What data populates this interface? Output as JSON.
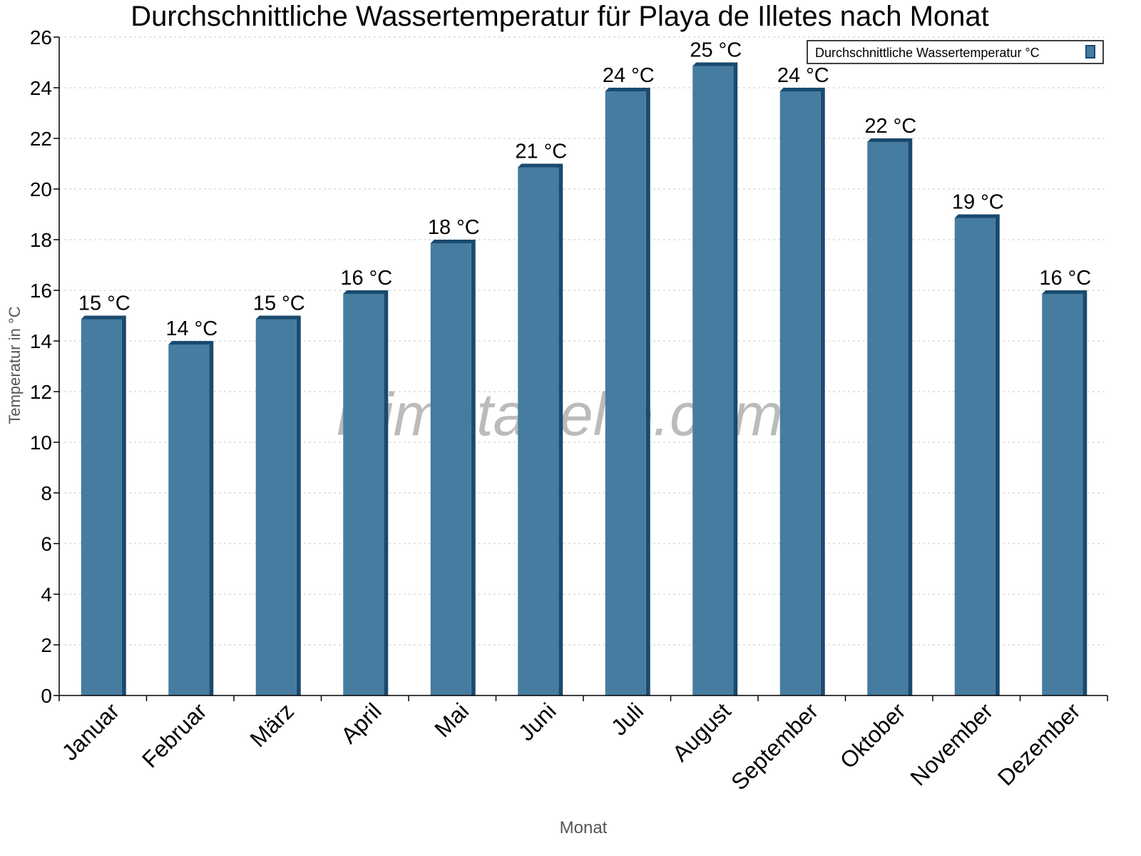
{
  "chart_data": {
    "type": "bar",
    "title": "Durchschnittliche Wassertemperatur für Playa de Illetes nach Monat",
    "xlabel": "Monat",
    "ylabel": "Temperatur in °C",
    "categories": [
      "Januar",
      "Februar",
      "März",
      "April",
      "Mai",
      "Juni",
      "Juli",
      "August",
      "September",
      "Oktober",
      "November",
      "Dezember"
    ],
    "series": [
      {
        "name": "Durchschnittliche Wassertemperatur °C",
        "values": [
          15,
          14,
          15,
          16,
          18,
          21,
          24,
          25,
          24,
          22,
          19,
          16
        ]
      }
    ],
    "data_labels": [
      "15 °C",
      "14 °C",
      "15 °C",
      "16 °C",
      "18 °C",
      "21 °C",
      "24 °C",
      "25 °C",
      "24 °C",
      "22 °C",
      "19 °C",
      "16 °C"
    ],
    "ylim": [
      0,
      26
    ],
    "yticks": [
      0,
      2,
      4,
      6,
      8,
      10,
      12,
      14,
      16,
      18,
      20,
      22,
      24,
      26
    ],
    "grid": true,
    "legend_position": "top-right",
    "colors": {
      "bar": "#467c9f",
      "bar_edge": "#1a4a6e",
      "grid": "#c8c8c8"
    }
  },
  "watermark": "klimatabelle.com"
}
